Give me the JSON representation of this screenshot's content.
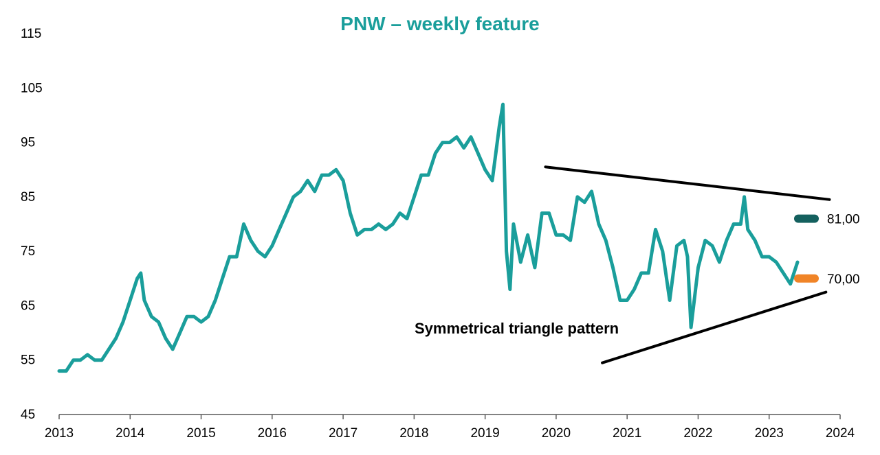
{
  "chart_data": {
    "type": "line",
    "title": "PNW – weekly feature",
    "xlabel": "",
    "ylabel": "",
    "xlim": [
      2013,
      2024
    ],
    "ylim": [
      45,
      115
    ],
    "x_ticks": [
      "2013",
      "2014",
      "2015",
      "2016",
      "2017",
      "2018",
      "2019",
      "2020",
      "2021",
      "2022",
      "2023",
      "2024"
    ],
    "y_ticks": [
      "45",
      "55",
      "65",
      "75",
      "85",
      "95",
      "105",
      "115"
    ],
    "grid": false,
    "legend": "none",
    "series": [
      {
        "color": "#1a9e9b",
        "x": [
          2013.0,
          2013.1,
          2013.2,
          2013.3,
          2013.4,
          2013.5,
          2013.6,
          2013.7,
          2013.8,
          2013.9,
          2014.0,
          2014.1,
          2014.15,
          2014.2,
          2014.3,
          2014.4,
          2014.5,
          2014.6,
          2014.7,
          2014.8,
          2014.9,
          2015.0,
          2015.1,
          2015.2,
          2015.3,
          2015.4,
          2015.5,
          2015.6,
          2015.7,
          2015.8,
          2015.9,
          2016.0,
          2016.1,
          2016.2,
          2016.3,
          2016.4,
          2016.5,
          2016.6,
          2016.7,
          2016.8,
          2016.9,
          2017.0,
          2017.1,
          2017.2,
          2017.3,
          2017.4,
          2017.5,
          2017.6,
          2017.7,
          2017.8,
          2017.9,
          2018.0,
          2018.1,
          2018.2,
          2018.3,
          2018.4,
          2018.5,
          2018.6,
          2018.7,
          2018.8,
          2018.9,
          2019.0,
          2019.1,
          2019.2,
          2019.25,
          2019.3,
          2019.35,
          2019.4,
          2019.5,
          2019.6,
          2019.7,
          2019.8,
          2019.9,
          2020.0,
          2020.1,
          2020.2,
          2020.3,
          2020.4,
          2020.5,
          2020.6,
          2020.7,
          2020.8,
          2020.9,
          2021.0,
          2021.1,
          2021.2,
          2021.3,
          2021.4,
          2021.5,
          2021.6,
          2021.7,
          2021.8,
          2021.85,
          2021.9,
          2022.0,
          2022.1,
          2022.2,
          2022.3,
          2022.4,
          2022.5,
          2022.6,
          2022.65,
          2022.7,
          2022.8,
          2022.9,
          2023.0,
          2023.1,
          2023.2,
          2023.3,
          2023.4
        ],
        "y": [
          53,
          53,
          55,
          55,
          56,
          55,
          55,
          57,
          59,
          62,
          66,
          70,
          71,
          66,
          63,
          62,
          59,
          57,
          60,
          63,
          63,
          62,
          63,
          66,
          70,
          74,
          74,
          80,
          77,
          75,
          74,
          76,
          79,
          82,
          85,
          86,
          88,
          86,
          89,
          89,
          90,
          88,
          82,
          78,
          79,
          79,
          80,
          79,
          80,
          82,
          81,
          85,
          89,
          89,
          93,
          95,
          95,
          96,
          94,
          96,
          93,
          90,
          88,
          98,
          102,
          75,
          68,
          80,
          73,
          78,
          72,
          82,
          82,
          78,
          78,
          77,
          85,
          84,
          86,
          80,
          77,
          72,
          66,
          66,
          68,
          71,
          71,
          79,
          75,
          66,
          76,
          77,
          74,
          61,
          72,
          77,
          76,
          73,
          77,
          80,
          80,
          85,
          79,
          77,
          74,
          74,
          73,
          71,
          69,
          73
        ]
      }
    ],
    "annotations": {
      "pattern_label": "Symmetrical triangle pattern",
      "upper_trendline": {
        "x": [
          2019.85,
          2023.85
        ],
        "y": [
          90.5,
          84.5
        ]
      },
      "lower_trendline": {
        "x": [
          2020.65,
          2023.8
        ],
        "y": [
          54.5,
          67.5
        ]
      }
    },
    "levels": [
      {
        "label": "81,00",
        "value": 81,
        "color": "#14605e"
      },
      {
        "label": "70,00",
        "value": 70,
        "color": "#f08427"
      }
    ]
  }
}
